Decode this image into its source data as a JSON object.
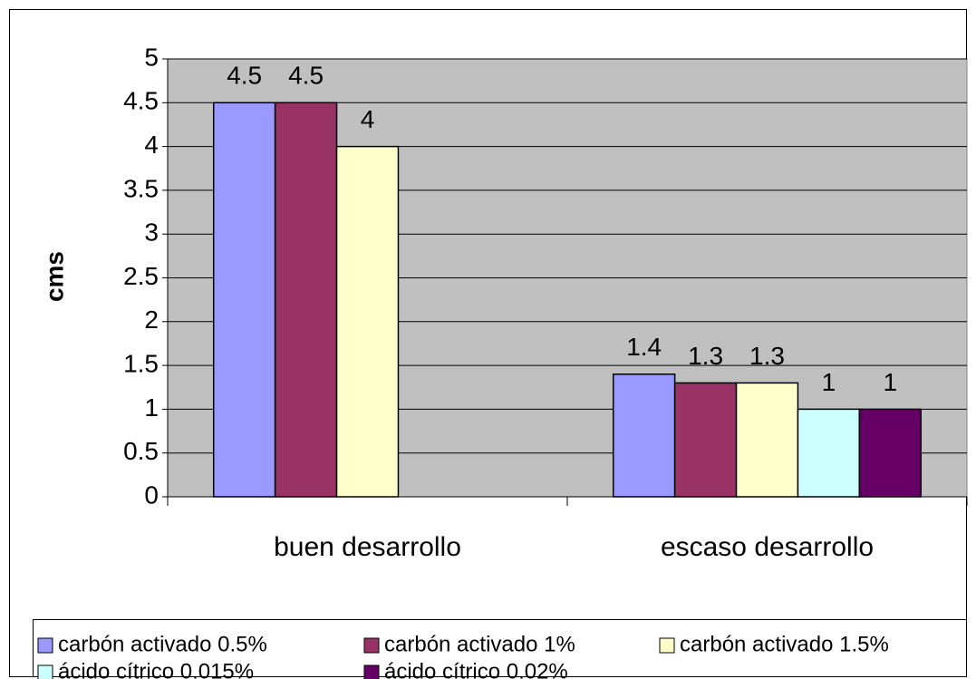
{
  "chart_data": {
    "type": "bar",
    "y_label": "cms",
    "categories": [
      "buen desarrollo",
      "escaso desarrollo"
    ],
    "series": [
      {
        "name": "carbón activado 0.5%",
        "color": "#9999ff",
        "values": [
          4.5,
          1.4
        ]
      },
      {
        "name": "carbón activado 1%",
        "color": "#993366",
        "values": [
          4.5,
          1.3
        ]
      },
      {
        "name": "carbón activado 1.5%",
        "color": "#ffffcc",
        "values": [
          4,
          1.3
        ]
      },
      {
        "name": "ácido cítrico 0.015%",
        "color": "#ccffff",
        "values": [
          null,
          1
        ]
      },
      {
        "name": "ácido cítrico 0.02%",
        "color": "#660066",
        "values": [
          null,
          1
        ]
      }
    ],
    "ylim": [
      0,
      5
    ],
    "yticks": [
      0,
      0.5,
      1,
      1.5,
      2,
      2.5,
      3,
      3.5,
      4,
      4.5,
      5
    ],
    "grid": true,
    "legend": "bottom"
  }
}
